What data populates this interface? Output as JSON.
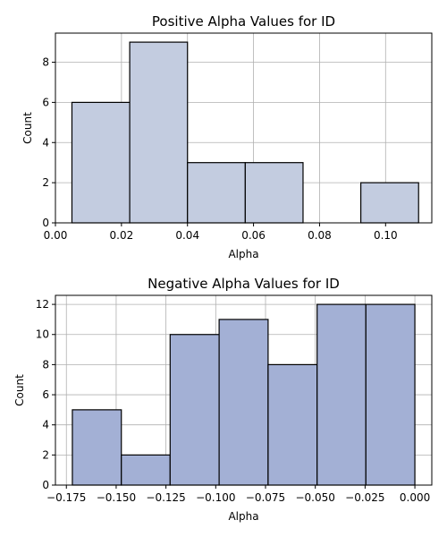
{
  "chart_data": [
    {
      "type": "bar",
      "title": "Positive Alpha Values for ID",
      "xlabel": "Alpha",
      "ylabel": "Count",
      "xlim": [
        0.0,
        0.114
      ],
      "ylim": [
        0,
        9.45
      ],
      "xticks": [
        "0.00",
        "0.02",
        "0.04",
        "0.06",
        "0.08",
        "0.10"
      ],
      "yticks": [
        "0",
        "2",
        "4",
        "6",
        "8"
      ],
      "bar_color": "#c3cce0",
      "grid": true,
      "bins": [
        {
          "x0": 0.005,
          "x1": 0.0225,
          "value": 6
        },
        {
          "x0": 0.0225,
          "x1": 0.04,
          "value": 9
        },
        {
          "x0": 0.04,
          "x1": 0.0575,
          "value": 3
        },
        {
          "x0": 0.0575,
          "x1": 0.075,
          "value": 3
        },
        {
          "x0": 0.075,
          "x1": 0.0925,
          "value": 0
        },
        {
          "x0": 0.0925,
          "x1": 0.11,
          "value": 2
        }
      ]
    },
    {
      "type": "bar",
      "title": "Negative Alpha Values for ID",
      "xlabel": "Alpha",
      "ylabel": "Count",
      "xlim": [
        -0.1805,
        0.0085
      ],
      "ylim": [
        0,
        12.6
      ],
      "xticks": [
        "−0.175",
        "−0.150",
        "−0.125",
        "−0.100",
        "−0.075",
        "−0.050",
        "−0.025",
        "0.000"
      ],
      "yticks": [
        "0",
        "2",
        "4",
        "6",
        "8",
        "10",
        "12"
      ],
      "bar_color": "#a3b0d5",
      "grid": true,
      "bins": [
        {
          "x0": -0.172,
          "x1": -0.1474,
          "value": 5
        },
        {
          "x0": -0.1474,
          "x1": -0.1229,
          "value": 2
        },
        {
          "x0": -0.1229,
          "x1": -0.0983,
          "value": 10
        },
        {
          "x0": -0.0983,
          "x1": -0.0737,
          "value": 11
        },
        {
          "x0": -0.0737,
          "x1": -0.0491,
          "value": 8
        },
        {
          "x0": -0.0491,
          "x1": -0.0246,
          "value": 12
        },
        {
          "x0": -0.0246,
          "x1": 0.0,
          "value": 12
        }
      ]
    }
  ]
}
